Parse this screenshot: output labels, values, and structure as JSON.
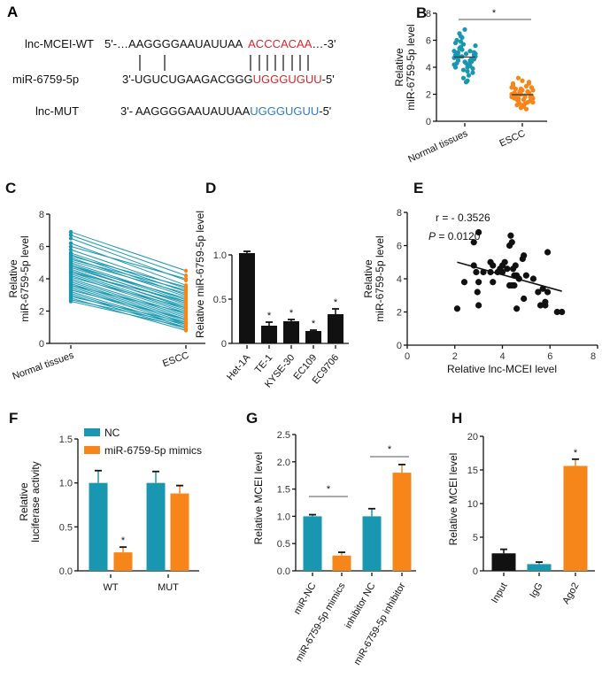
{
  "panel_a": {
    "panel": "A",
    "rows": [
      {
        "label": "lnc-MCEI-WT",
        "prefix": "5'-…AAGGGGAAUAUUAA  ",
        "highlight": "ACCCACAA",
        "suffix": "…-3'",
        "highlight_color": "#d7262d"
      },
      {
        "label": "miR-6759-5p",
        "prefix": "3'-UGUCUGAAGACGGG",
        "highlight": "UGGGUGUU",
        "suffix": "-5'",
        "highlight_color": "#d7262d"
      },
      {
        "label": "lnc-MUT",
        "prefix": "3'- AAGGGGAAUAUUAA",
        "highlight": "UGGGUGUU",
        "suffix": "-5'",
        "highlight_color": "#2e7bbf"
      }
    ]
  },
  "colors": {
    "teal": "#1a97b0",
    "orange": "#f7861a",
    "black": "#111111"
  },
  "chart_data": [
    {
      "panel": "B",
      "type": "scatter",
      "ylabel": [
        "Relative",
        "miR-6759-5p level"
      ],
      "categories": [
        "Normal tissues",
        "ESCC"
      ],
      "ylim": [
        0,
        8
      ],
      "yticks": [
        "0",
        "2",
        "4",
        "6",
        "8"
      ],
      "significance": "*",
      "series": [
        {
          "values": [
            4.2,
            4.5,
            4.8,
            5.0,
            5.2,
            4.6,
            4.9,
            5.4,
            3.8,
            4.0,
            4.4,
            5.6,
            6.0,
            6.3,
            6.8,
            3.4,
            3.6,
            4.7,
            5.1,
            5.3,
            4.3,
            4.1,
            4.9,
            5.8,
            6.5,
            3.2,
            3.0,
            4.6,
            4.8,
            5.0,
            5.5,
            4.4,
            4.2,
            3.9,
            5.2,
            4.7,
            6.2,
            2.9,
            4.5,
            5.1,
            4.0,
            4.8,
            5.7,
            3.7,
            4.6,
            5.0,
            4.3,
            5.9
          ],
          "color": "#1a97b0"
        },
        {
          "values": [
            1.8,
            2.0,
            2.2,
            1.6,
            1.4,
            2.5,
            2.8,
            1.2,
            1.0,
            1.9,
            2.1,
            2.3,
            1.7,
            1.5,
            3.0,
            2.6,
            1.8,
            2.0,
            2.4,
            1.3,
            1.1,
            2.2,
            1.9,
            2.7,
            1.6,
            2.0,
            1.8,
            2.9,
            1.4,
            2.1,
            1.7,
            2.3,
            0.9,
            1.5,
            2.5,
            1.9,
            2.0,
            1.2,
            2.2,
            1.8,
            2.6,
            1.6,
            2.4,
            1.3,
            2.8,
            1.7,
            2.1,
            3.2
          ],
          "color": "#f7861a"
        }
      ]
    },
    {
      "panel": "C",
      "type": "line",
      "ylabel": [
        "Relative",
        "miR-6759-5p level"
      ],
      "categories": [
        "Normal tissues",
        "ESCC"
      ],
      "ylim": [
        0,
        8
      ],
      "yticks": [
        "0",
        "2",
        "4",
        "6",
        "8"
      ],
      "pairs_normal": [
        6.9,
        6.7,
        6.5,
        6.2,
        6.0,
        5.8,
        5.6,
        5.5,
        5.3,
        5.2,
        5.0,
        4.9,
        4.8,
        4.7,
        4.6,
        4.5,
        4.4,
        4.3,
        4.2,
        4.1,
        4.0,
        3.9,
        3.8,
        3.7,
        3.6,
        3.5,
        3.4,
        3.3,
        3.2,
        3.1,
        3.0,
        2.9,
        2.8,
        2.7,
        2.6,
        4.8,
        5.1,
        3.6,
        4.4,
        5.4
      ],
      "pairs_escc": [
        4.5,
        4.2,
        3.9,
        3.6,
        4.0,
        3.4,
        3.2,
        3.0,
        2.9,
        3.3,
        2.7,
        2.6,
        2.4,
        2.5,
        2.2,
        2.3,
        2.1,
        2.0,
        1.9,
        2.2,
        1.8,
        1.7,
        1.6,
        1.5,
        1.4,
        1.3,
        1.2,
        1.5,
        1.1,
        1.0,
        0.9,
        1.3,
        0.8,
        1.2,
        1.0,
        2.8,
        3.1,
        1.9,
        2.6,
        3.5
      ],
      "line_color": "#1a97b0",
      "escc_color": "#f7861a"
    },
    {
      "panel": "D",
      "type": "bar",
      "ylabel": [
        "Relative miR-6759-5p level"
      ],
      "categories": [
        "Het-1A",
        "TE-1",
        "KYSE-30",
        "EC109",
        "EC9706"
      ],
      "values": [
        1.02,
        0.2,
        0.25,
        0.14,
        0.33
      ],
      "errors": [
        0.02,
        0.04,
        0.02,
        0.01,
        0.06
      ],
      "significance": [
        "",
        "*",
        "*",
        "*",
        "*"
      ],
      "ylim": [
        0,
        1.2
      ],
      "yticks": [
        "0",
        "0.5",
        "1.0"
      ],
      "color": "#111111"
    },
    {
      "panel": "E",
      "type": "scatter",
      "ylabel": [
        "Relative",
        "miR-6759-5p level"
      ],
      "xlabel": "Relative lnc-MCEI level",
      "r_text": "r = - 0.3526",
      "p_label": "P",
      "p_text": " = 0.0120",
      "xlim": [
        0,
        8
      ],
      "ylim": [
        0,
        8
      ],
      "xticks": [
        "0",
        "2",
        "4",
        "6",
        "8"
      ],
      "yticks": [
        "0",
        "2",
        "4",
        "6",
        "8"
      ],
      "points": [
        [
          2.1,
          2.2
        ],
        [
          2.4,
          3.8
        ],
        [
          2.8,
          6.2
        ],
        [
          2.8,
          4.8
        ],
        [
          2.9,
          4.4
        ],
        [
          3.0,
          6.8
        ],
        [
          2.95,
          3.2
        ],
        [
          3.0,
          3.8
        ],
        [
          3.0,
          2.4
        ],
        [
          3.2,
          4.4
        ],
        [
          3.5,
          4.4
        ],
        [
          3.5,
          5.0
        ],
        [
          3.6,
          4.8
        ],
        [
          3.6,
          3.8
        ],
        [
          3.8,
          4.4
        ],
        [
          3.9,
          4.6
        ],
        [
          4.0,
          4.8
        ],
        [
          4.0,
          4.4
        ],
        [
          4.1,
          5.0
        ],
        [
          4.2,
          4.6
        ],
        [
          4.3,
          6.0
        ],
        [
          4.35,
          6.6
        ],
        [
          4.4,
          6.2
        ],
        [
          4.3,
          3.6
        ],
        [
          4.4,
          3.6
        ],
        [
          4.45,
          4.6
        ],
        [
          4.5,
          4.2
        ],
        [
          4.5,
          3.6
        ],
        [
          4.55,
          4.8
        ],
        [
          4.6,
          4.2
        ],
        [
          4.6,
          2.2
        ],
        [
          4.7,
          4.0
        ],
        [
          4.85,
          5.2
        ],
        [
          4.9,
          5.4
        ],
        [
          4.9,
          2.8
        ],
        [
          5.0,
          4.2
        ],
        [
          5.3,
          4.0
        ],
        [
          5.5,
          3.2
        ],
        [
          5.6,
          2.4
        ],
        [
          5.7,
          3.4
        ],
        [
          5.8,
          2.6
        ],
        [
          5.8,
          2.4
        ],
        [
          5.9,
          5.6
        ],
        [
          5.9,
          3.2
        ],
        [
          6.3,
          2.0
        ],
        [
          6.5,
          2.0
        ]
      ],
      "trendline": [
        [
          2.1,
          5.0
        ],
        [
          6.5,
          3.25
        ]
      ]
    },
    {
      "panel": "F",
      "type": "bar",
      "ylabel": [
        "Relative",
        "luciferase activity"
      ],
      "categories": [
        "WT",
        "MUT"
      ],
      "ylim": [
        0,
        1.5
      ],
      "yticks": [
        "0.0",
        "0.5",
        "1.0",
        "1.5"
      ],
      "legend_position": "top-left",
      "series": [
        {
          "name": "NC",
          "values": [
            1.0,
            1.0
          ],
          "errors": [
            0.14,
            0.13
          ],
          "color": "#1a97b0"
        },
        {
          "name": "miR-6759-5p mimics",
          "values": [
            0.21,
            0.88
          ],
          "errors": [
            0.06,
            0.09
          ],
          "color": "#f7861a",
          "significance": [
            "*",
            ""
          ]
        }
      ]
    },
    {
      "panel": "G",
      "type": "bar",
      "ylabel": [
        "Relative MCEI level"
      ],
      "categories": [
        "miR-NC",
        "miR-6759-5p mimics",
        "inhibitor NC",
        "miR-6759-5p inhibitor"
      ],
      "values": [
        1.0,
        0.28,
        1.0,
        1.8
      ],
      "errors": [
        0.03,
        0.06,
        0.14,
        0.15
      ],
      "colors": [
        "#1a97b0",
        "#f7861a",
        "#1a97b0",
        "#f7861a"
      ],
      "comparisons": [
        {
          "label": "*"
        },
        {
          "label": "*"
        }
      ],
      "ylim": [
        0,
        2.5
      ],
      "yticks": [
        "0.0",
        "0.5",
        "1.0",
        "1.5",
        "2.0",
        "2.5"
      ]
    },
    {
      "panel": "H",
      "type": "bar",
      "ylabel": [
        "Relative MCEI level"
      ],
      "categories": [
        "Input",
        "IgG",
        "Ago2"
      ],
      "values": [
        2.6,
        1.0,
        15.6
      ],
      "errors": [
        0.6,
        0.3,
        1.0
      ],
      "colors": [
        "#111111",
        "#1a97b0",
        "#f7861a"
      ],
      "significance": [
        "",
        "",
        "*"
      ],
      "ylim": [
        0,
        20
      ],
      "yticks": [
        "0",
        "5",
        "10",
        "15",
        "20"
      ]
    }
  ]
}
